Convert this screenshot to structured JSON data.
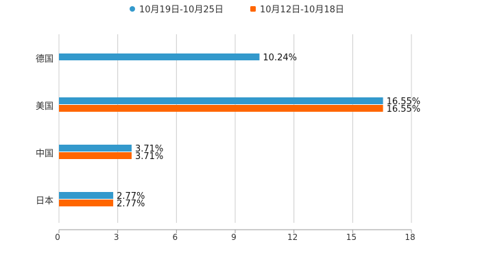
{
  "chart_data": {
    "type": "bar",
    "orientation": "horizontal",
    "title": "",
    "xlabel": "",
    "ylabel": "",
    "categories": [
      "德国",
      "美国",
      "中国",
      "日本"
    ],
    "series": [
      {
        "name": "10月19日-10月25日",
        "color": "#3399cc",
        "values": [
          10.24,
          16.55,
          3.71,
          2.77
        ],
        "labels": [
          "10.24%",
          "16.55%",
          "3.71%",
          "2.77%"
        ]
      },
      {
        "name": "10月12日-10月18日",
        "color": "#ff6600",
        "values": [
          null,
          16.55,
          3.71,
          2.77
        ],
        "labels": [
          null,
          "16.55%",
          "3.71%",
          "2.77%"
        ]
      }
    ],
    "xlim": [
      0,
      18
    ],
    "xticks": [
      "0",
      "3",
      "6",
      "9",
      "12",
      "15",
      "18"
    ],
    "grid": true,
    "legend_position": "top-center"
  }
}
